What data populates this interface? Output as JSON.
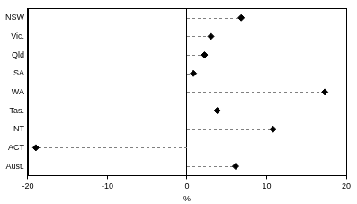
{
  "chart_data": {
    "type": "dot",
    "orientation": "horizontal",
    "categories": [
      "NSW",
      "Vic.",
      "Qld",
      "SA",
      "WA",
      "Tas.",
      "NT",
      "ACT",
      "Aust."
    ],
    "values": [
      6.8,
      3.0,
      2.2,
      0.8,
      17.3,
      3.8,
      10.8,
      -19.0,
      6.1
    ],
    "color": "#000000",
    "marker": "diamond",
    "line_style": "dashed",
    "x_label": "%",
    "xlim": [
      -20,
      20
    ],
    "xticks": [
      -20,
      -10,
      0,
      10,
      20
    ]
  }
}
